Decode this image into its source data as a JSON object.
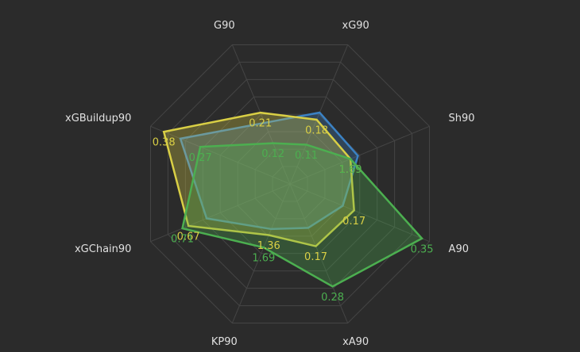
{
  "chart_data": {
    "type": "radar",
    "categories": [
      "G90",
      "xG90",
      "Sh90",
      "A90",
      "xA90",
      "KP90",
      "xGChain90",
      "xGBuildup90"
    ],
    "rmax": [
      0.41,
      0.39,
      3.9,
      0.37,
      0.38,
      3.7,
      0.92,
      0.42
    ],
    "series": [
      {
        "color": "#3b82c4",
        "values": [
          0.18,
          0.2,
          1.9,
          0.14,
          0.12,
          1.2,
          0.55,
          0.33
        ]
      },
      {
        "color": "#d9cf45",
        "values": [
          0.21,
          0.18,
          1.69,
          0.17,
          0.17,
          1.36,
          0.67,
          0.38
        ]
      },
      {
        "color": "#4caf50",
        "values": [
          0.12,
          0.11,
          1.69,
          0.35,
          0.28,
          1.69,
          0.71,
          0.27
        ]
      }
    ],
    "labeled_series": [
      1,
      2
    ]
  }
}
